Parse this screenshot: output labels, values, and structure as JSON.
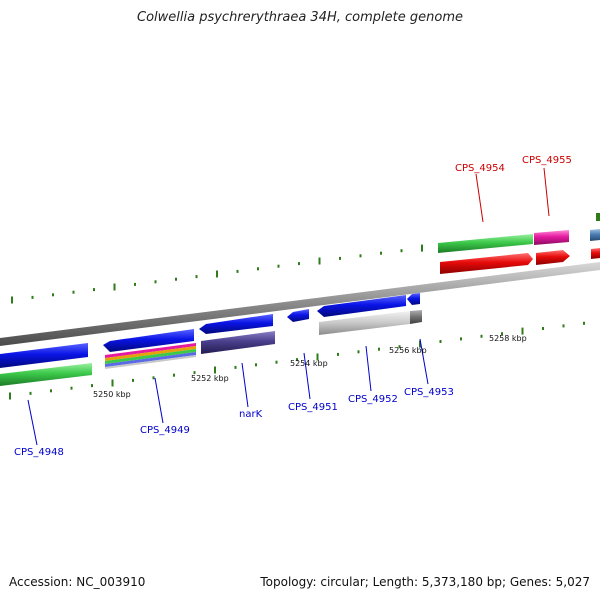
{
  "title": "Colwellia psychrerythraea 34H, complete genome",
  "footer": {
    "accession": "Accession: NC_003910",
    "summary": "Topology: circular; Length: 5,373,180 bp; Genes: 5,027"
  },
  "colors": {
    "backbone": "#7f7f7f",
    "tick": "#2e7d1a",
    "forward_label": "#cc0000",
    "reverse_label": "#0000cc",
    "blue": "#0a14e6",
    "green": "#3cc94a",
    "red": "#e60a0a",
    "magenta": "#e61aa0",
    "gray": "#c8c8c8",
    "purple": "#4a3f8c",
    "steel": "#4a7bb0"
  },
  "scale_labels": [
    {
      "text": "5250 kbp"
    },
    {
      "text": "5252 kbp"
    },
    {
      "text": "5254 kbp"
    },
    {
      "text": "5256 kbp"
    },
    {
      "text": "5258 kbp"
    }
  ],
  "gene_labels": [
    {
      "text": "CPS_4954",
      "strand": "forward"
    },
    {
      "text": "CPS_4955",
      "strand": "forward"
    },
    {
      "text": "CPS_4948",
      "strand": "reverse"
    },
    {
      "text": "CPS_4949",
      "strand": "reverse"
    },
    {
      "text": "narK",
      "strand": "reverse"
    },
    {
      "text": "CPS_4951",
      "strand": "reverse"
    },
    {
      "text": "CPS_4952",
      "strand": "reverse"
    },
    {
      "text": "CPS_4953",
      "strand": "reverse"
    }
  ]
}
